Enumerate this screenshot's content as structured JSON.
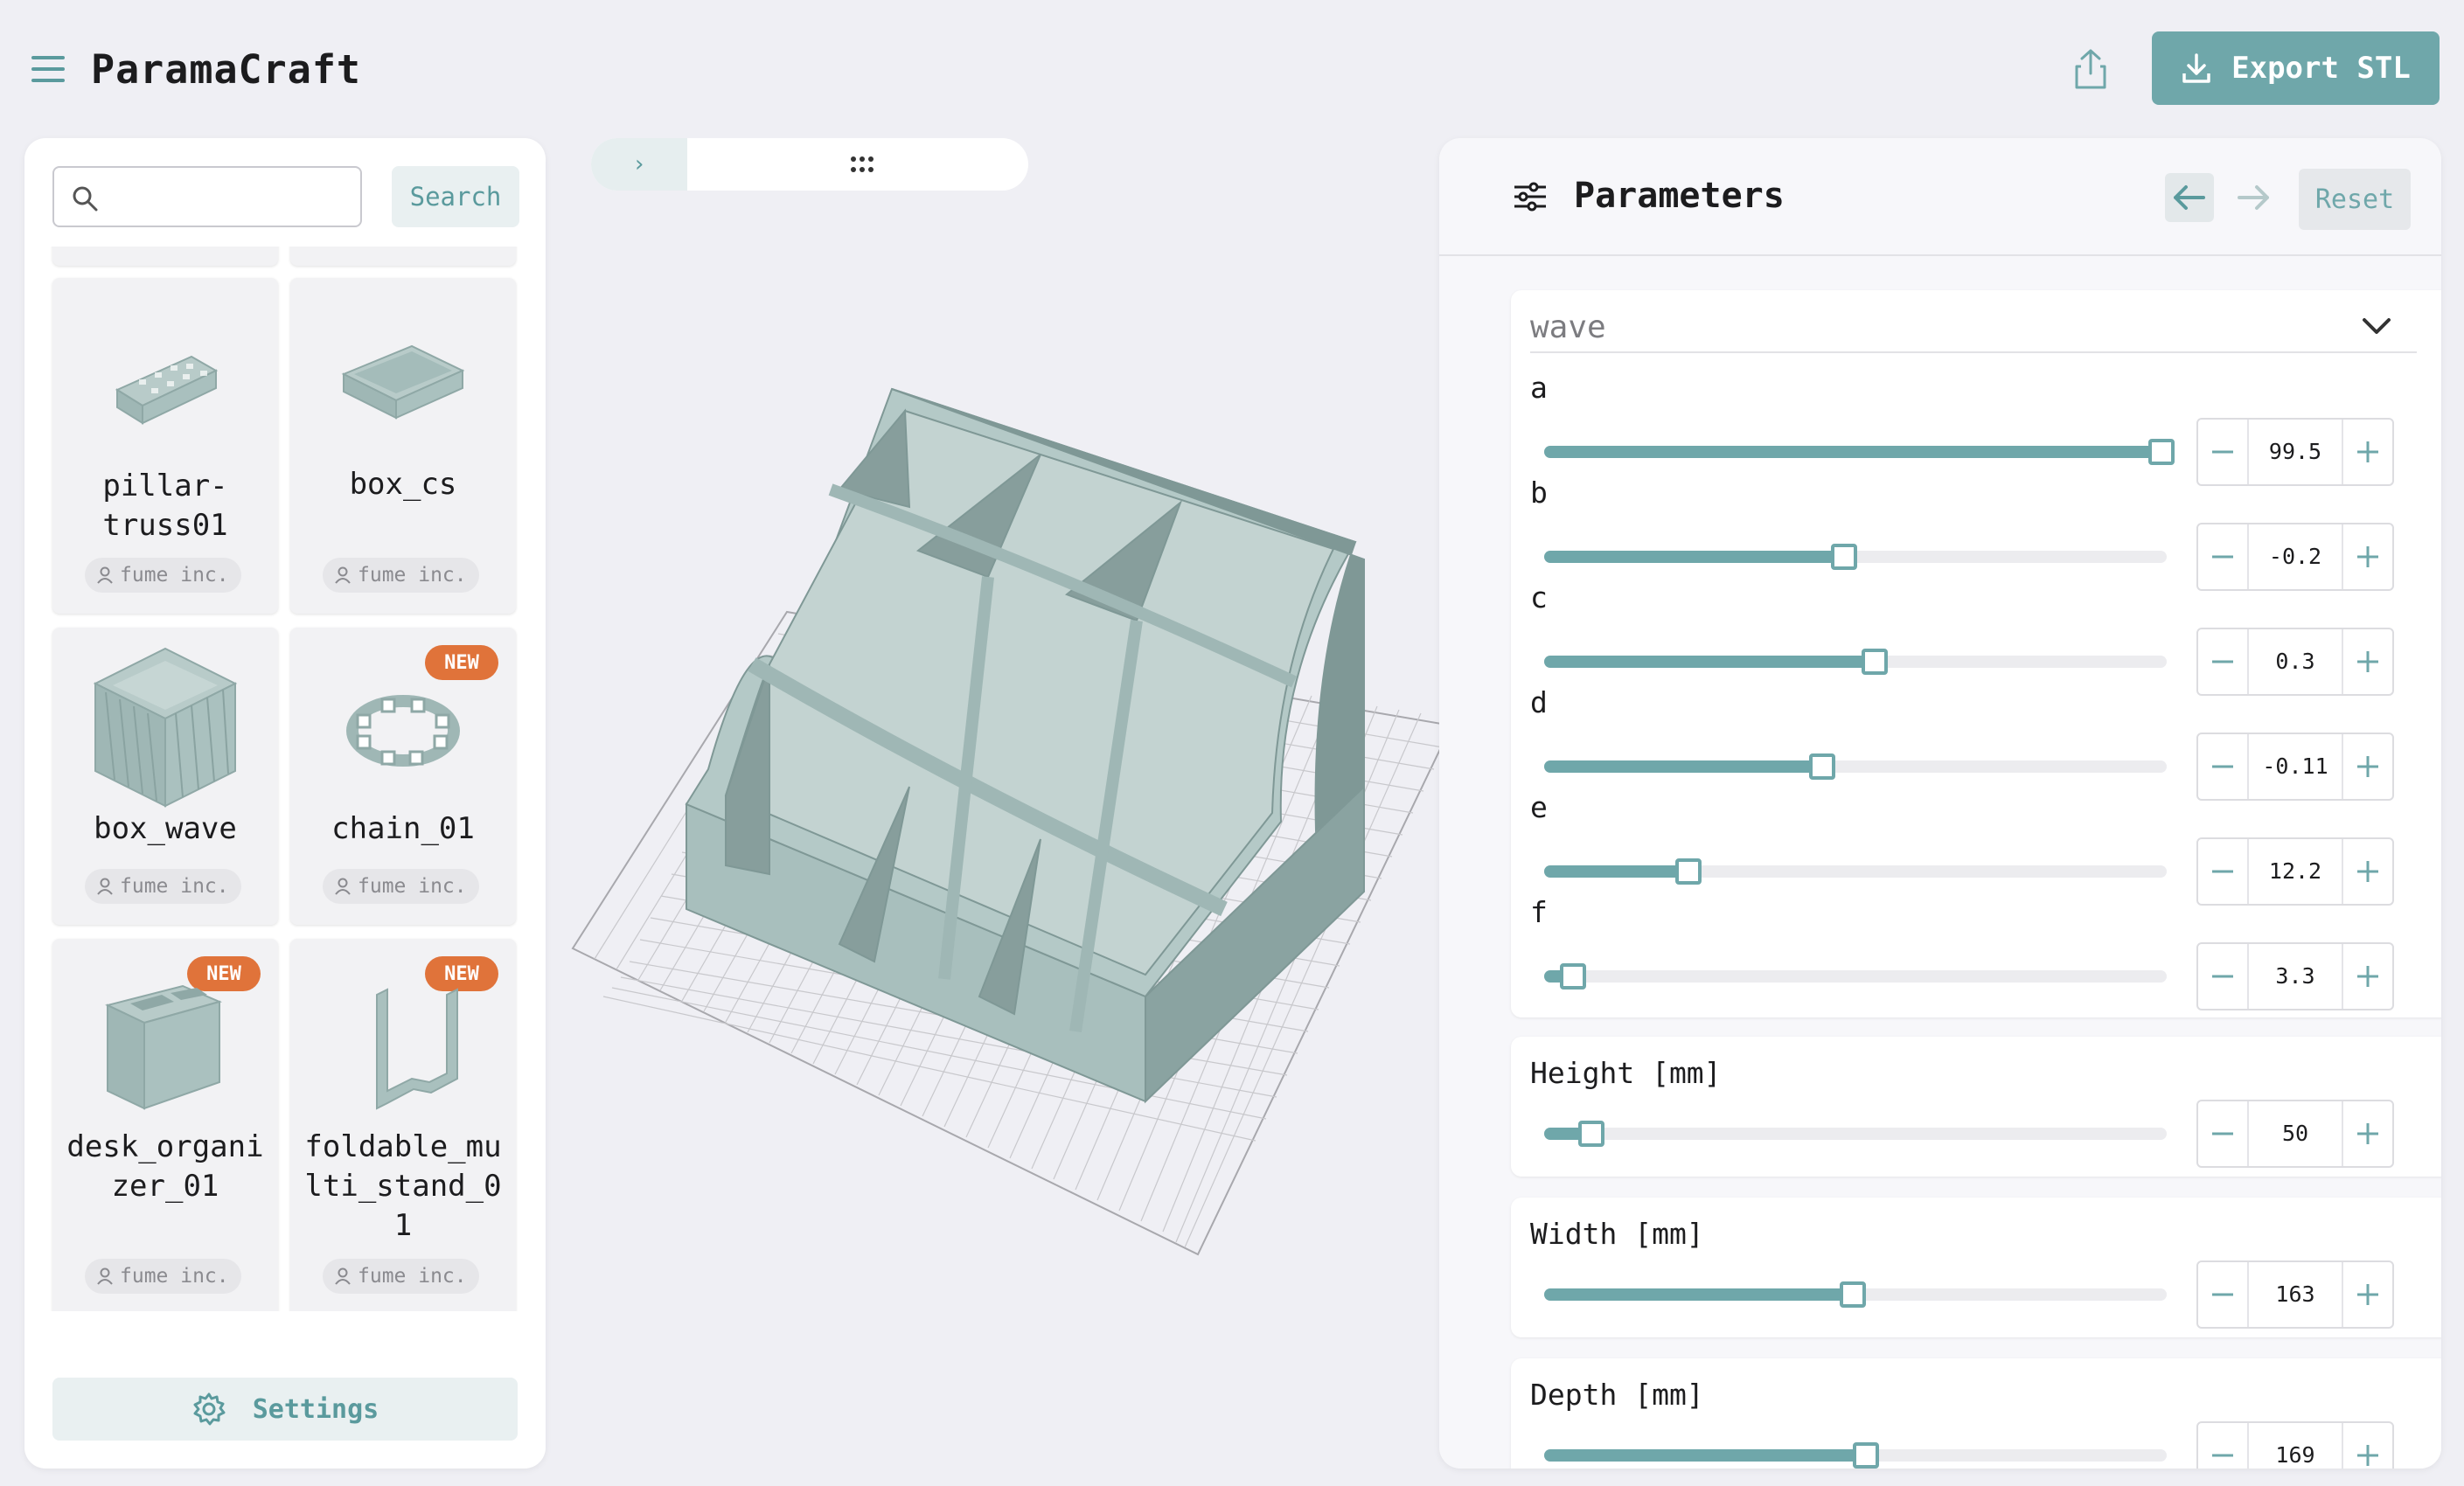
{
  "app": {
    "title": "ParamaCraft",
    "export_label": "Export STL"
  },
  "library": {
    "search_placeholder": "",
    "search_button": "Search",
    "settings_label": "Settings",
    "models": [
      {
        "name": "pillar-truss01",
        "author": "fume inc.",
        "badge": ""
      },
      {
        "name": "box_cs",
        "author": "fume inc.",
        "badge": ""
      },
      {
        "name": "box_wave",
        "author": "fume inc.",
        "badge": ""
      },
      {
        "name": "chain_01",
        "author": "fume inc.",
        "badge": "NEW"
      },
      {
        "name": "desk_organizer_01",
        "author": "fume inc.",
        "badge": "NEW"
      },
      {
        "name": "foldable_multi_stand_01",
        "author": "fume inc.",
        "badge": "NEW"
      }
    ]
  },
  "viewport": {
    "expand_icon": "chevron-right",
    "drag_icon": "drag-dots"
  },
  "params": {
    "title": "Parameters",
    "reset_label": "Reset",
    "wave_group": {
      "title": "wave",
      "items": [
        {
          "label": "a",
          "value": "99.5",
          "fraction": 0.99
        },
        {
          "label": "b",
          "value": "-0.2",
          "fraction": 0.48
        },
        {
          "label": "c",
          "value": "0.3",
          "fraction": 0.53
        },
        {
          "label": "d",
          "value": "-0.11",
          "fraction": 0.445
        },
        {
          "label": "e",
          "value": "12.2",
          "fraction": 0.23
        },
        {
          "label": "f",
          "value": "3.3",
          "fraction": 0.045
        }
      ]
    },
    "height": {
      "label": "Height [mm]",
      "value": "50",
      "fraction": 0.075
    },
    "width": {
      "label": "Width [mm]",
      "value": "163",
      "fraction": 0.495
    },
    "depth": {
      "label": "Depth [mm]",
      "value": "169",
      "fraction": 0.515
    }
  },
  "colors": {
    "accent": "#6fa7aa",
    "badge": "#e0733a",
    "model": "#9fb7b5"
  }
}
